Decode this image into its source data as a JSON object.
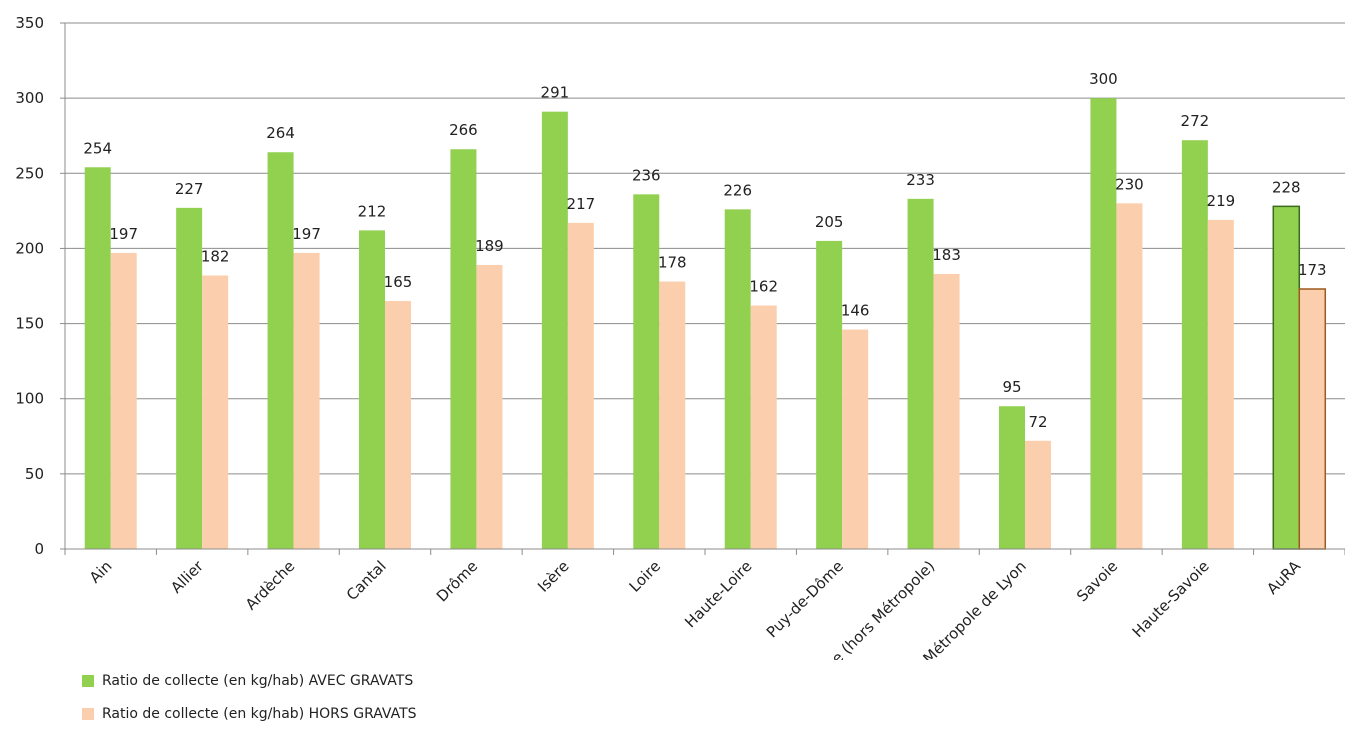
{
  "colors": {
    "avec": "#92d050",
    "hors": "#fbcfad",
    "aura_avec": "#92d050",
    "aura_hors": "#fbcfad",
    "aura_border_avec": "#3a6b1f",
    "aura_border_hors": "#9c5a1e",
    "grid": "#8c8c8c"
  },
  "chart_data": {
    "type": "bar",
    "title": "",
    "xlabel": "",
    "ylabel": "",
    "ylim": [
      0,
      350
    ],
    "yticks": [
      0,
      50,
      100,
      150,
      200,
      250,
      300,
      350
    ],
    "grid": true,
    "legend_position": "bottom-left",
    "categories": [
      "Ain",
      "Allier",
      "Ardèche",
      "Cantal",
      "Drôme",
      "Isère",
      "Loire",
      "Haute-Loire",
      "Puy-de-Dôme",
      "Rhône (hors Métropole)",
      "Métropole de Lyon",
      "Savoie",
      "Haute-Savoie",
      "AuRA"
    ],
    "series": [
      {
        "name": "Ratio de collecte (en kg/hab) AVEC GRAVATS",
        "values": [
          254,
          227,
          264,
          212,
          266,
          291,
          236,
          226,
          205,
          233,
          95,
          300,
          272,
          228
        ]
      },
      {
        "name": "Ratio de collecte (en kg/hab) HORS GRAVATS",
        "values": [
          197,
          182,
          197,
          165,
          189,
          217,
          178,
          162,
          146,
          183,
          72,
          230,
          219,
          173
        ]
      }
    ]
  }
}
